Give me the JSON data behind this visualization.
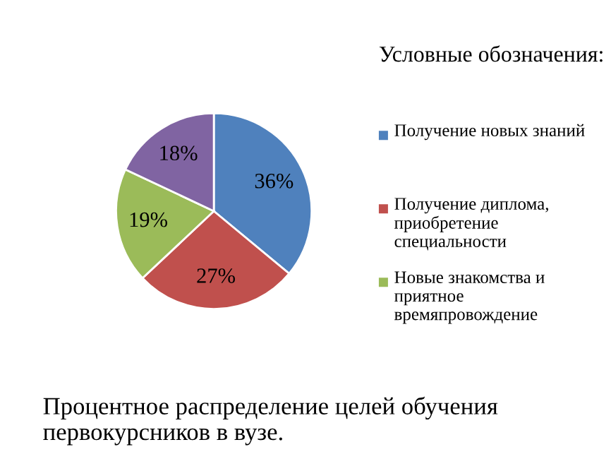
{
  "chart_data": {
    "type": "pie",
    "title": "Процентное распределение целей обучения первокурсников в вузе.",
    "legend_title": "Условные обозначения:",
    "categories": [
      "Получение новых знаний",
      "Получение диплома, приобретение специальности",
      "Новые знакомства и приятное времяпровождение",
      null
    ],
    "values": [
      36,
      27,
      19,
      18
    ],
    "value_labels": [
      "36%",
      "27%",
      "19%",
      "18%"
    ],
    "colors": [
      "#4f81bd",
      "#c0504d",
      "#9bbb59",
      "#8064a2"
    ],
    "legend": "right"
  }
}
